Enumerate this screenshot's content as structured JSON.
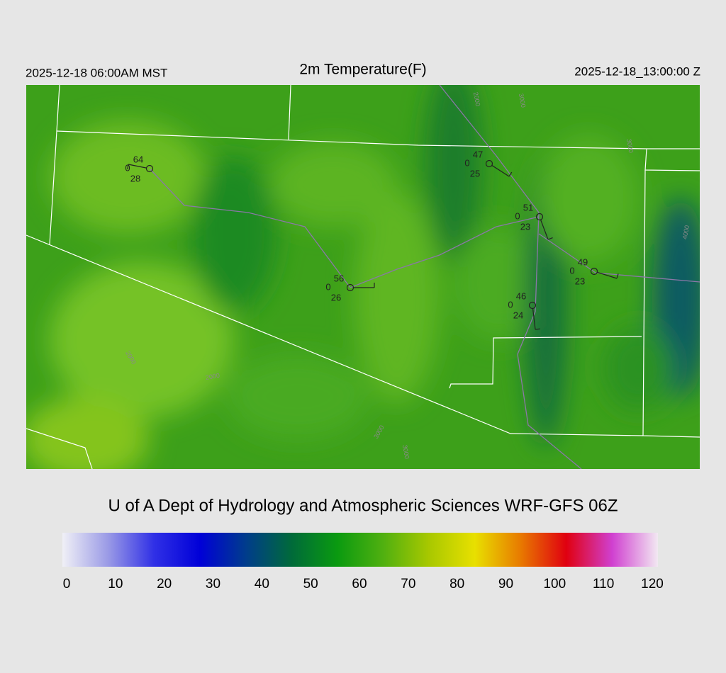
{
  "header": {
    "left": "2025-12-18 06:00AM MST",
    "title": "2m Temperature(F)",
    "right": "2025-12-18_13:00:00 Z"
  },
  "stations": [
    {
      "temperature": "64",
      "sky": "0",
      "dewpoint": "28"
    },
    {
      "temperature": "47",
      "sky": "0",
      "dewpoint": "25"
    },
    {
      "temperature": "51",
      "sky": "0",
      "dewpoint": "23"
    },
    {
      "temperature": "56",
      "sky": "0",
      "dewpoint": "26"
    },
    {
      "temperature": "49",
      "sky": "0",
      "dewpoint": "23"
    },
    {
      "temperature": "46",
      "sky": "0",
      "dewpoint": "24"
    }
  ],
  "contour_labels": [
    "2000",
    "3000",
    "3000",
    "4000",
    "2000",
    "3000",
    "3000",
    "2000"
  ],
  "credit": "U of A Dept of Hydrology and Atmospheric Sciences WRF-GFS 06Z",
  "colorbar": {
    "lim": [
      0,
      120
    ],
    "ticks": [
      0,
      10,
      20,
      30,
      40,
      50,
      60,
      70,
      80,
      90,
      100,
      110,
      120
    ],
    "colors": [
      "#f0f0f6",
      "#9a9ae6",
      "#3030e6",
      "#0000d8",
      "#003c8c",
      "#006a3a",
      "#0a9a10",
      "#50b010",
      "#a8c800",
      "#e8e000",
      "#e87a00",
      "#e00010",
      "#d040d0",
      "#f2e8f2"
    ]
  }
}
